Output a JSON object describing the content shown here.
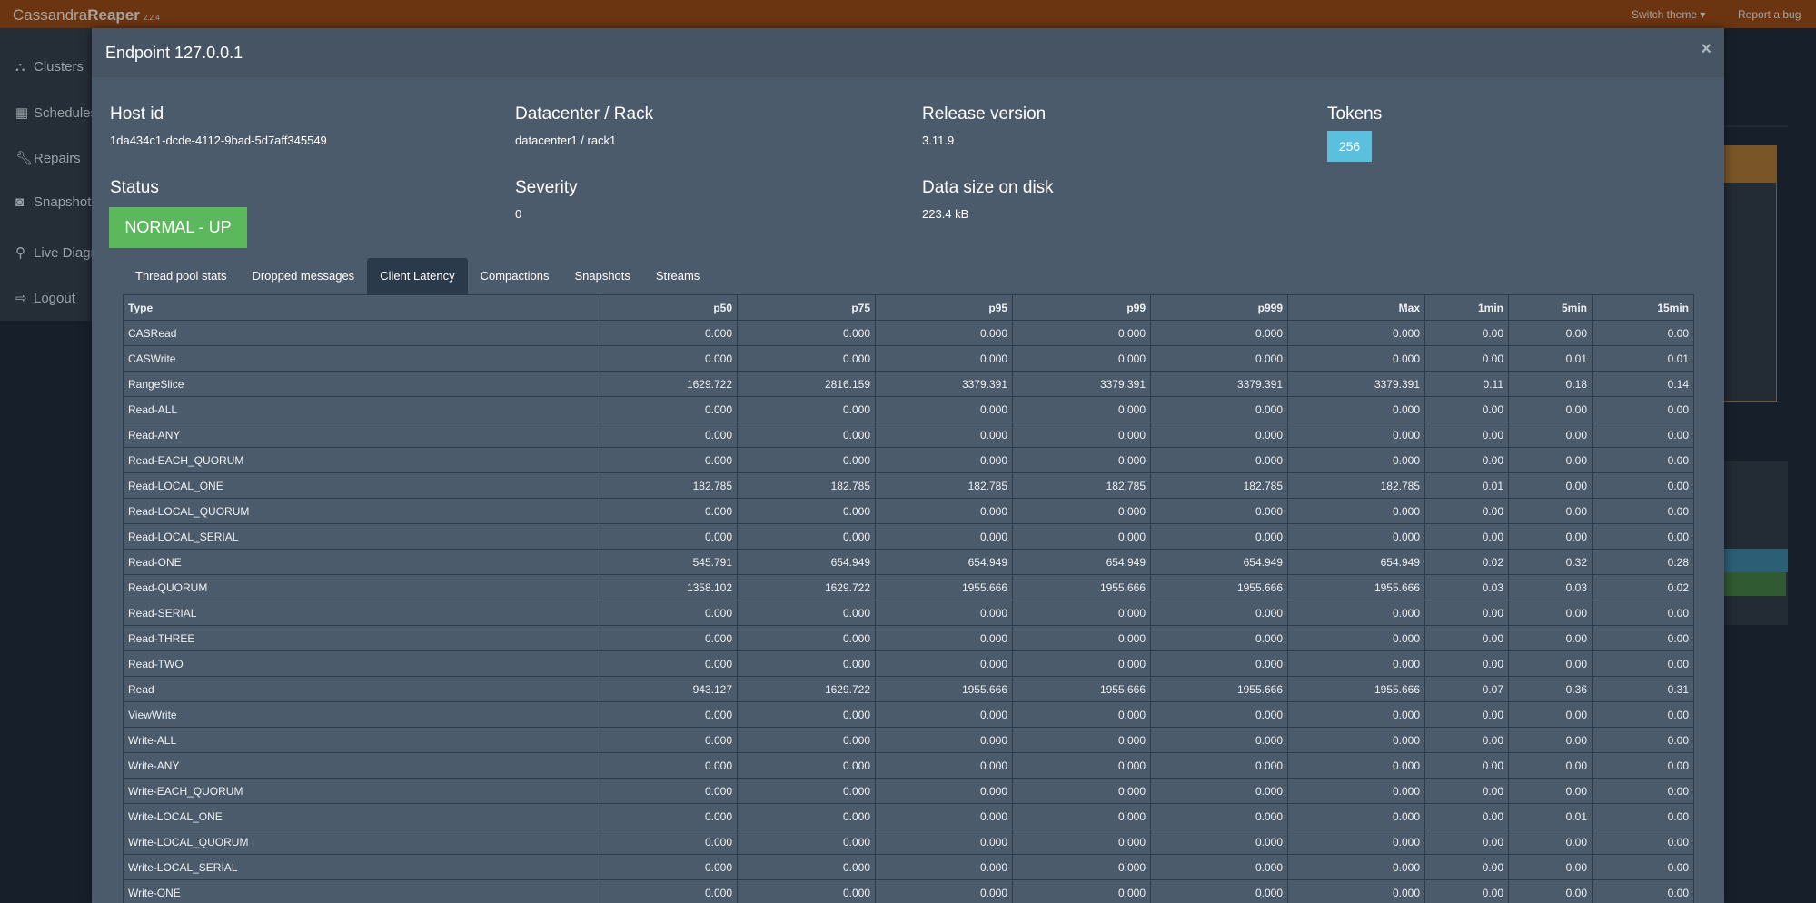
{
  "navbar": {
    "brand_prefix": "Cassandra",
    "brand_bold": "Reaper",
    "version": "2.2.4",
    "switch_theme": "Switch theme ▾",
    "report_bug": "Report a bug",
    "color": "#6c3511"
  },
  "sidebar": {
    "items": [
      {
        "label": "Clusters",
        "icon": "sitemap-icon"
      },
      {
        "label": "Schedules",
        "icon": "calendar-icon"
      },
      {
        "label": "Repairs",
        "icon": "wrench-icon"
      },
      {
        "label": "Snapshots",
        "icon": "camera-icon"
      },
      {
        "label": "Live Diagnostics",
        "icon": "search-icon"
      },
      {
        "label": "Logout",
        "icon": "sign-out-icon"
      }
    ]
  },
  "modal": {
    "title": "Endpoint 127.0.0.1",
    "close": "×",
    "host_id_label": "Host id",
    "host_id": "1da434c1-dcde-4112-9bad-5d7aff345549",
    "dc_rack_label": "Datacenter / Rack",
    "dc_rack": "datacenter1 / rack1",
    "release_label": "Release version",
    "release": "3.11.9",
    "tokens_label": "Tokens",
    "tokens": "256",
    "status_label": "Status",
    "status": "NORMAL - UP",
    "severity_label": "Severity",
    "severity": "0",
    "data_size_label": "Data size on disk",
    "data_size": "223.4 kB",
    "status_color": "#5cb85c",
    "tokens_color": "#5bc0de"
  },
  "tabs": [
    {
      "label": "Thread pool stats",
      "active": false
    },
    {
      "label": "Dropped messages",
      "active": false
    },
    {
      "label": "Client Latency",
      "active": true
    },
    {
      "label": "Compactions",
      "active": false
    },
    {
      "label": "Snapshots",
      "active": false
    },
    {
      "label": "Streams",
      "active": false
    }
  ],
  "table": {
    "columns": [
      "Type",
      "p50",
      "p75",
      "p95",
      "p99",
      "p999",
      "Max",
      "1min",
      "5min",
      "15min"
    ],
    "rows": [
      [
        "CASRead",
        "0.000",
        "0.000",
        "0.000",
        "0.000",
        "0.000",
        "0.000",
        "0.00",
        "0.00",
        "0.00"
      ],
      [
        "CASWrite",
        "0.000",
        "0.000",
        "0.000",
        "0.000",
        "0.000",
        "0.000",
        "0.00",
        "0.01",
        "0.01"
      ],
      [
        "RangeSlice",
        "1629.722",
        "2816.159",
        "3379.391",
        "3379.391",
        "3379.391",
        "3379.391",
        "0.11",
        "0.18",
        "0.14"
      ],
      [
        "Read-ALL",
        "0.000",
        "0.000",
        "0.000",
        "0.000",
        "0.000",
        "0.000",
        "0.00",
        "0.00",
        "0.00"
      ],
      [
        "Read-ANY",
        "0.000",
        "0.000",
        "0.000",
        "0.000",
        "0.000",
        "0.000",
        "0.00",
        "0.00",
        "0.00"
      ],
      [
        "Read-EACH_QUORUM",
        "0.000",
        "0.000",
        "0.000",
        "0.000",
        "0.000",
        "0.000",
        "0.00",
        "0.00",
        "0.00"
      ],
      [
        "Read-LOCAL_ONE",
        "182.785",
        "182.785",
        "182.785",
        "182.785",
        "182.785",
        "182.785",
        "0.01",
        "0.00",
        "0.00"
      ],
      [
        "Read-LOCAL_QUORUM",
        "0.000",
        "0.000",
        "0.000",
        "0.000",
        "0.000",
        "0.000",
        "0.00",
        "0.00",
        "0.00"
      ],
      [
        "Read-LOCAL_SERIAL",
        "0.000",
        "0.000",
        "0.000",
        "0.000",
        "0.000",
        "0.000",
        "0.00",
        "0.00",
        "0.00"
      ],
      [
        "Read-ONE",
        "545.791",
        "654.949",
        "654.949",
        "654.949",
        "654.949",
        "654.949",
        "0.02",
        "0.32",
        "0.28"
      ],
      [
        "Read-QUORUM",
        "1358.102",
        "1629.722",
        "1955.666",
        "1955.666",
        "1955.666",
        "1955.666",
        "0.03",
        "0.03",
        "0.02"
      ],
      [
        "Read-SERIAL",
        "0.000",
        "0.000",
        "0.000",
        "0.000",
        "0.000",
        "0.000",
        "0.00",
        "0.00",
        "0.00"
      ],
      [
        "Read-THREE",
        "0.000",
        "0.000",
        "0.000",
        "0.000",
        "0.000",
        "0.000",
        "0.00",
        "0.00",
        "0.00"
      ],
      [
        "Read-TWO",
        "0.000",
        "0.000",
        "0.000",
        "0.000",
        "0.000",
        "0.000",
        "0.00",
        "0.00",
        "0.00"
      ],
      [
        "Read",
        "943.127",
        "1629.722",
        "1955.666",
        "1955.666",
        "1955.666",
        "1955.666",
        "0.07",
        "0.36",
        "0.31"
      ],
      [
        "ViewWrite",
        "0.000",
        "0.000",
        "0.000",
        "0.000",
        "0.000",
        "0.000",
        "0.00",
        "0.00",
        "0.00"
      ],
      [
        "Write-ALL",
        "0.000",
        "0.000",
        "0.000",
        "0.000",
        "0.000",
        "0.000",
        "0.00",
        "0.00",
        "0.00"
      ],
      [
        "Write-ANY",
        "0.000",
        "0.000",
        "0.000",
        "0.000",
        "0.000",
        "0.000",
        "0.00",
        "0.00",
        "0.00"
      ],
      [
        "Write-EACH_QUORUM",
        "0.000",
        "0.000",
        "0.000",
        "0.000",
        "0.000",
        "0.000",
        "0.00",
        "0.00",
        "0.00"
      ],
      [
        "Write-LOCAL_ONE",
        "0.000",
        "0.000",
        "0.000",
        "0.000",
        "0.000",
        "0.000",
        "0.00",
        "0.01",
        "0.00"
      ],
      [
        "Write-LOCAL_QUORUM",
        "0.000",
        "0.000",
        "0.000",
        "0.000",
        "0.000",
        "0.000",
        "0.00",
        "0.00",
        "0.00"
      ],
      [
        "Write-LOCAL_SERIAL",
        "0.000",
        "0.000",
        "0.000",
        "0.000",
        "0.000",
        "0.000",
        "0.00",
        "0.00",
        "0.00"
      ],
      [
        "Write-ONE",
        "0.000",
        "0.000",
        "0.000",
        "0.000",
        "0.000",
        "0.000",
        "0.00",
        "0.00",
        "0.00"
      ]
    ]
  }
}
